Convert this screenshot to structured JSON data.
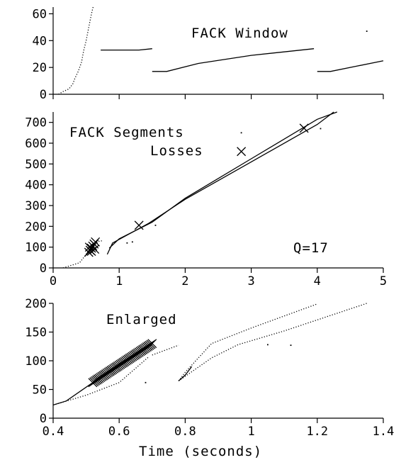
{
  "chart_data": [
    {
      "type": "scatter",
      "panel": "top",
      "title": "",
      "legend_label": "FACK Window",
      "xlim": [
        0,
        5
      ],
      "ylim": [
        0,
        65
      ],
      "x_ticks": [
        0,
        1,
        2,
        3,
        4,
        5
      ],
      "y_ticks": [
        0,
        20,
        40,
        60
      ],
      "show_x_tick_labels": false,
      "series": [
        {
          "name": "FACK Window",
          "style": "dotted-steep",
          "points": [
            [
              0.08,
              0
            ],
            [
              0.15,
              2
            ],
            [
              0.24,
              4
            ],
            [
              0.3,
              8
            ],
            [
              0.33,
              12
            ],
            [
              0.38,
              17
            ],
            [
              0.43,
              24
            ],
            [
              0.46,
              32
            ],
            [
              0.5,
              40
            ],
            [
              0.54,
              50
            ],
            [
              0.58,
              60
            ],
            [
              0.62,
              68
            ]
          ]
        },
        {
          "name": "FACK Window",
          "style": "line",
          "segments": [
            [
              [
                0.72,
                33
              ],
              [
                1.3,
                33
              ],
              [
                1.5,
                34
              ]
            ],
            [
              [
                1.5,
                17
              ],
              [
                1.72,
                17
              ],
              [
                2.2,
                23
              ],
              [
                3.0,
                29
              ],
              [
                3.95,
                34
              ]
            ],
            [
              [
                4.0,
                17
              ],
              [
                4.2,
                17
              ],
              [
                4.6,
                21
              ],
              [
                5.0,
                25
              ]
            ]
          ]
        }
      ],
      "annotation_points": [
        [
          4.75,
          47
        ]
      ]
    },
    {
      "type": "scatter",
      "panel": "middle",
      "title": "",
      "legend": [
        {
          "label": "FACK Segments",
          "marker": "."
        },
        {
          "label": "Losses",
          "marker": "×"
        }
      ],
      "annotation": "Q=17",
      "xlim": [
        0,
        5
      ],
      "ylim": [
        0,
        750
      ],
      "x_ticks": [
        0,
        1,
        2,
        3,
        4,
        5
      ],
      "y_ticks": [
        0,
        100,
        200,
        300,
        400,
        500,
        600,
        700
      ],
      "series": [
        {
          "name": "FACK Segments",
          "segments": [
            [
              [
                0.15,
                0
              ],
              [
                0.4,
                25
              ],
              [
                0.5,
                65
              ],
              [
                0.7,
                130
              ],
              [
                0.75,
                130
              ]
            ],
            [
              [
                0.82,
                65
              ],
              [
                0.9,
                120
              ],
              [
                1.45,
                215
              ],
              [
                2.0,
                330
              ],
              [
                3.0,
                510
              ],
              [
                4.0,
                690
              ],
              [
                4.25,
                750
              ]
            ],
            [
              [
                0.85,
                95
              ],
              [
                1.0,
                140
              ],
              [
                1.5,
                220
              ],
              [
                2.0,
                335
              ],
              [
                3.0,
                525
              ],
              [
                4.0,
                715
              ],
              [
                4.3,
                750
              ]
            ]
          ]
        },
        {
          "name": "Losses",
          "points": [
            [
              0.54,
              75
            ],
            [
              0.56,
              85
            ],
            [
              0.58,
              95
            ],
            [
              0.6,
              105
            ],
            [
              0.62,
              115
            ],
            [
              0.64,
              125
            ],
            [
              0.55,
              100
            ],
            [
              0.58,
              80
            ],
            [
              0.63,
              90
            ],
            [
              1.3,
              205
            ],
            [
              3.8,
              672
            ]
          ]
        }
      ]
    },
    {
      "type": "scatter",
      "panel": "bottom",
      "title": "",
      "annotation": "Enlarged",
      "xlabel": "Time (seconds)",
      "xlim": [
        0.4,
        1.4
      ],
      "ylim": [
        0,
        200
      ],
      "x_ticks": [
        0.4,
        0.6,
        0.8,
        1,
        1.2,
        1.4
      ],
      "x_tick_labels": [
        "0.4",
        "0.6",
        "0.8",
        "1",
        "1.2",
        "1.4"
      ],
      "y_ticks": [
        0,
        50,
        100,
        150,
        200
      ],
      "series": [
        {
          "name": "FACK Segments",
          "segments": [
            [
              [
                0.4,
                23
              ],
              [
                0.44,
                30
              ],
              [
                0.52,
                62
              ],
              [
                0.6,
                95
              ],
              [
                0.7,
                128
              ]
            ],
            [
              [
                0.4,
                23
              ],
              [
                0.5,
                40
              ],
              [
                0.6,
                62
              ],
              [
                0.69,
                107
              ]
            ],
            [
              [
                0.78,
                65
              ],
              [
                0.8,
                80
              ],
              [
                0.88,
                130
              ],
              [
                1.0,
                157
              ],
              [
                1.2,
                199
              ],
              [
                1.2,
                200
              ]
            ],
            [
              [
                0.78,
                65
              ],
              [
                0.88,
                105
              ],
              [
                0.96,
                128
              ],
              [
                1.1,
                152
              ],
              [
                1.35,
                200
              ]
            ],
            [
              [
                0.7,
                110
              ],
              [
                0.78,
                127
              ]
            ]
          ],
          "isolated_points": [
            [
              0.68,
              62
            ],
            [
              1.05,
              128
            ],
            [
              1.12,
              127
            ]
          ]
        },
        {
          "name": "Losses",
          "points_from": 0.52,
          "points_to": 0.7,
          "count": 46,
          "y_from": 62,
          "y_to": 130
        }
      ]
    }
  ]
}
